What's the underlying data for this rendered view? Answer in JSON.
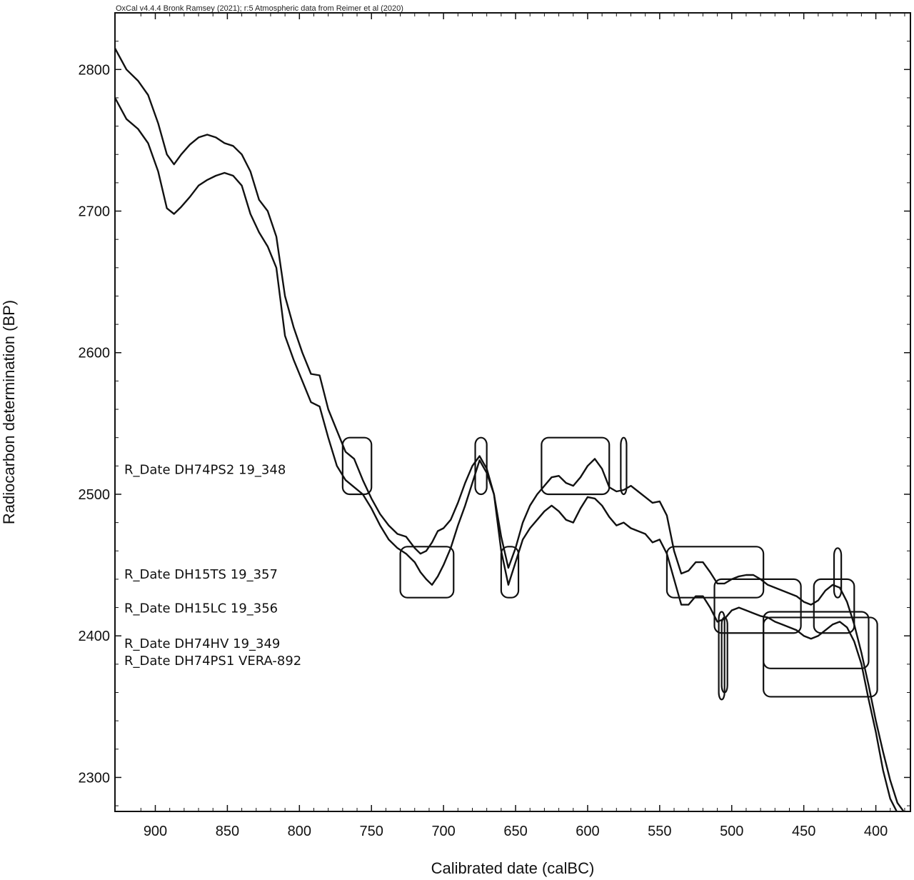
{
  "chart_data": {
    "type": "line",
    "header": "OxCal v4.4.4 Bronk Ramsey (2021); r:5 Atmospheric data from Reimer et al (2020)",
    "xlabel": "Calibrated date (calBC)",
    "ylabel": "Radiocarbon determination (BP)",
    "xlim": [
      928,
      376
    ],
    "ylim": [
      2276,
      2840
    ],
    "x_ticks": [
      900,
      850,
      800,
      750,
      700,
      650,
      600,
      550,
      500,
      450,
      400
    ],
    "y_ticks": [
      2300,
      2400,
      2500,
      2600,
      2700,
      2800
    ],
    "grid": false,
    "series": [
      {
        "x": [
          928,
          920,
          912,
          905,
          898,
          892,
          887,
          882,
          876,
          870,
          864,
          858,
          852,
          846,
          840,
          834,
          828,
          822,
          816,
          810,
          804,
          798,
          792,
          786,
          780,
          774,
          768,
          762,
          756,
          750,
          744,
          738,
          732,
          726,
          720,
          716,
          712,
          708,
          704,
          700,
          695,
          690,
          685,
          680,
          675,
          670,
          665,
          660,
          655,
          650,
          645,
          640,
          635,
          630,
          625,
          620,
          615,
          610,
          605,
          600,
          595,
          590,
          585,
          580,
          575,
          570,
          565,
          560,
          555,
          550,
          545,
          540,
          535,
          530,
          525,
          520,
          515,
          510,
          505,
          500,
          495,
          490,
          485,
          480,
          475,
          470,
          465,
          460,
          455,
          450,
          445,
          440,
          435,
          430,
          425,
          420,
          415,
          410,
          405,
          400,
          395,
          390,
          385,
          380
        ],
        "values": [
          2815,
          2800,
          2792,
          2782,
          2762,
          2740,
          2733,
          2740,
          2747,
          2752,
          2754,
          2752,
          2748,
          2746,
          2740,
          2728,
          2708,
          2700,
          2682,
          2640,
          2618,
          2600,
          2585,
          2584,
          2560,
          2545,
          2530,
          2525,
          2510,
          2497,
          2486,
          2478,
          2472,
          2470,
          2462,
          2458,
          2460,
          2466,
          2474,
          2476,
          2482,
          2494,
          2508,
          2520,
          2527,
          2518,
          2500,
          2470,
          2448,
          2462,
          2480,
          2492,
          2500,
          2506,
          2512,
          2513,
          2508,
          2506,
          2512,
          2520,
          2525,
          2518,
          2505,
          2502,
          2503,
          2506,
          2502,
          2498,
          2494,
          2495,
          2485,
          2460,
          2444,
          2446,
          2452,
          2452,
          2445,
          2437,
          2437,
          2440,
          2442,
          2443,
          2443,
          2440,
          2436,
          2434,
          2432,
          2430,
          2428,
          2424,
          2422,
          2425,
          2432,
          2436,
          2434,
          2424,
          2408,
          2388,
          2365,
          2340,
          2318,
          2298,
          2282,
          2275
        ]
      },
      {
        "x": [
          928,
          920,
          912,
          905,
          898,
          892,
          887,
          882,
          876,
          870,
          864,
          858,
          852,
          846,
          840,
          834,
          828,
          822,
          816,
          810,
          804,
          798,
          792,
          786,
          780,
          774,
          768,
          762,
          756,
          750,
          744,
          738,
          732,
          726,
          720,
          716,
          712,
          708,
          704,
          700,
          695,
          690,
          685,
          680,
          675,
          670,
          665,
          660,
          655,
          650,
          645,
          640,
          635,
          630,
          625,
          620,
          615,
          610,
          605,
          600,
          595,
          590,
          585,
          580,
          575,
          570,
          565,
          560,
          555,
          550,
          545,
          540,
          535,
          530,
          525,
          520,
          515,
          510,
          505,
          500,
          495,
          490,
          485,
          480,
          475,
          470,
          465,
          460,
          455,
          450,
          445,
          440,
          435,
          430,
          425,
          420,
          415,
          410,
          405,
          400,
          395,
          390,
          385,
          380
        ],
        "values": [
          2780,
          2765,
          2758,
          2748,
          2728,
          2702,
          2698,
          2703,
          2710,
          2718,
          2722,
          2725,
          2727,
          2725,
          2718,
          2698,
          2685,
          2675,
          2660,
          2612,
          2595,
          2580,
          2565,
          2562,
          2540,
          2520,
          2510,
          2505,
          2500,
          2490,
          2478,
          2468,
          2462,
          2458,
          2452,
          2445,
          2440,
          2436,
          2442,
          2450,
          2462,
          2478,
          2492,
          2508,
          2524,
          2515,
          2500,
          2460,
          2436,
          2452,
          2468,
          2476,
          2482,
          2488,
          2492,
          2488,
          2482,
          2480,
          2490,
          2498,
          2497,
          2492,
          2484,
          2478,
          2480,
          2476,
          2474,
          2472,
          2466,
          2468,
          2458,
          2440,
          2422,
          2422,
          2428,
          2428,
          2420,
          2410,
          2412,
          2418,
          2420,
          2418,
          2416,
          2414,
          2413,
          2410,
          2408,
          2406,
          2404,
          2400,
          2398,
          2400,
          2404,
          2408,
          2410,
          2406,
          2396,
          2380,
          2355,
          2332,
          2305,
          2285,
          2275,
          2270
        ]
      }
    ],
    "annotations": [
      {
        "text": "R_Date DH74PS2 19_348",
        "y": 2518
      },
      {
        "text": "R_Date DH15TS 19_357",
        "y": 2444
      },
      {
        "text": "R_Date DH15LC 19_356",
        "y": 2420
      },
      {
        "text": "R_Date DH74HV 19_349",
        "y": 2395
      },
      {
        "text": "R_Date DH74PS1 VERA-892",
        "y": 2383
      }
    ],
    "boxes": [
      {
        "x1": 770,
        "x2": 750,
        "y1": 2540,
        "y2": 2500
      },
      {
        "x1": 678,
        "x2": 670,
        "y1": 2540,
        "y2": 2500
      },
      {
        "x1": 632,
        "x2": 585,
        "y1": 2540,
        "y2": 2500
      },
      {
        "x1": 730,
        "x2": 693,
        "y1": 2463,
        "y2": 2427
      },
      {
        "x1": 660,
        "x2": 648,
        "y1": 2463,
        "y2": 2427
      },
      {
        "x1": 545,
        "x2": 478,
        "y1": 2463,
        "y2": 2427
      },
      {
        "x1": 512,
        "x2": 452,
        "y1": 2440,
        "y2": 2402
      },
      {
        "x1": 443,
        "x2": 415,
        "y1": 2440,
        "y2": 2402
      },
      {
        "x1": 478,
        "x2": 405,
        "y1": 2417,
        "y2": 2377
      },
      {
        "x1": 478,
        "x2": 399,
        "y1": 2413,
        "y2": 2357
      },
      {
        "x1": 577,
        "x2": 573,
        "y1": 2540,
        "y2": 2500
      },
      {
        "x1": 509,
        "x2": 505,
        "y1": 2417,
        "y2": 2355
      },
      {
        "x1": 507,
        "x2": 503,
        "y1": 2413,
        "y2": 2360
      },
      {
        "x1": 429,
        "x2": 424,
        "y1": 2462,
        "y2": 2427
      }
    ]
  }
}
